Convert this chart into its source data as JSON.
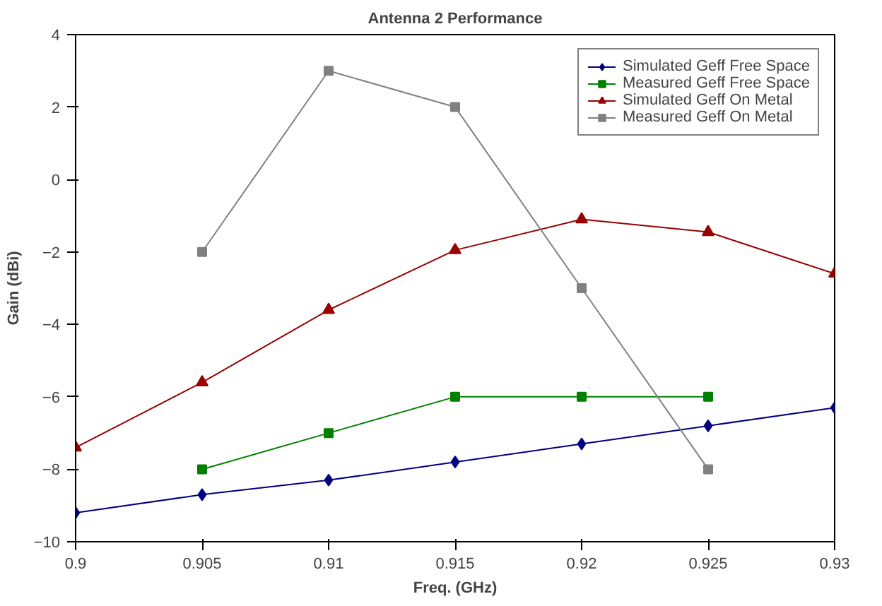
{
  "chart_data": {
    "type": "line",
    "title": "Antenna 2 Performance",
    "xlabel": "Freq. (GHz)",
    "ylabel": "Gain (dBi)",
    "x": [
      0.9,
      0.905,
      0.91,
      0.915,
      0.92,
      0.925,
      0.93
    ],
    "series": [
      {
        "name": "Simulated Geff Free Space",
        "color": "#000080",
        "marker": "diamond",
        "values": [
          -9.2,
          -8.7,
          -8.3,
          -7.8,
          -7.3,
          -6.8,
          -6.3
        ]
      },
      {
        "name": "Measured Geff Free Space",
        "color": "#008000",
        "marker": "square",
        "values": [
          null,
          -8,
          -7,
          -6,
          -6,
          -6,
          null
        ]
      },
      {
        "name": "Simulated Geff On Metal",
        "color": "#990000",
        "marker": "triangle",
        "values": [
          -7.4,
          -5.6,
          -3.6,
          -1.95,
          -1.1,
          -1.45,
          -2.6
        ]
      },
      {
        "name": "Measured Geff On Metal",
        "color": "#808080",
        "marker": "square",
        "values": [
          null,
          -2,
          3,
          2,
          -3,
          -8,
          null
        ]
      }
    ],
    "xlim": [
      0.9,
      0.93
    ],
    "xticks": [
      0.9,
      0.905,
      0.91,
      0.915,
      0.92,
      0.925,
      0.93
    ],
    "ylim": [
      -10,
      4
    ],
    "yticks": [
      -10,
      -8,
      -6,
      -4,
      -2,
      0,
      2,
      4
    ],
    "grid": false,
    "legend": "top right",
    "line_style": "solid"
  }
}
